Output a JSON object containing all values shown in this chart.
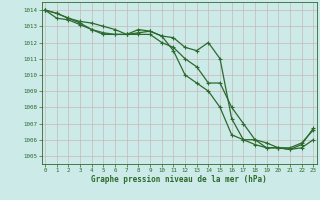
{
  "xlabel": "Graphe pression niveau de la mer (hPa)",
  "x_ticks": [
    0,
    1,
    2,
    3,
    4,
    5,
    6,
    7,
    8,
    9,
    10,
    11,
    12,
    13,
    14,
    15,
    16,
    17,
    18,
    19,
    20,
    21,
    22,
    23
  ],
  "y_ticks": [
    1005,
    1006,
    1007,
    1008,
    1009,
    1010,
    1011,
    1012,
    1013,
    1014
  ],
  "ylim": [
    1004.5,
    1014.5
  ],
  "xlim": [
    -0.3,
    23.3
  ],
  "series": [
    [
      1014.0,
      1013.8,
      1013.5,
      1013.2,
      1012.8,
      1012.5,
      1012.5,
      1012.5,
      1012.5,
      1012.5,
      1012.0,
      1011.7,
      1011.0,
      1010.5,
      1009.5,
      1009.5,
      1008.0,
      1007.0,
      1006.0,
      1005.8,
      1005.5,
      1005.4,
      1005.5,
      1006.0
    ],
    [
      1014.0,
      1013.5,
      1013.4,
      1013.1,
      1012.8,
      1012.6,
      1012.5,
      1012.5,
      1012.6,
      1012.7,
      1012.4,
      1011.5,
      1010.0,
      1009.5,
      1009.0,
      1008.0,
      1006.3,
      1006.0,
      1005.7,
      1005.5,
      1005.5,
      1005.5,
      1005.8,
      1006.6
    ],
    [
      1014.0,
      1013.8,
      1013.5,
      1013.3,
      1013.2,
      1013.0,
      1012.8,
      1012.5,
      1012.8,
      1012.7,
      1012.4,
      1012.3,
      1011.7,
      1011.5,
      1012.0,
      1011.0,
      1007.3,
      1006.0,
      1006.0,
      1005.5,
      1005.5,
      1005.4,
      1005.7,
      1006.7
    ]
  ],
  "line_color": "#2d6a2d",
  "marker": "+",
  "marker_size": 3,
  "bg_color": "#cceae7",
  "grid_color": "#c8b8b8",
  "tick_label_color": "#2d6a2d",
  "axis_label_color": "#2d6a2d",
  "line_width": 0.9
}
